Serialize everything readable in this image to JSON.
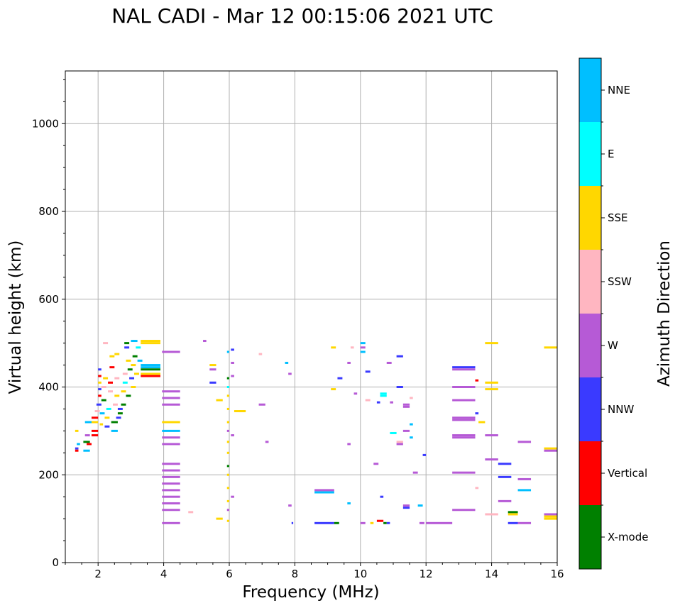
{
  "chart_data": {
    "type": "scatter",
    "title": "NAL CADI - Mar 12 00:15:06 2021 UTC",
    "xlabel": "Frequency (MHz)",
    "ylabel": "Virtual height (km)",
    "xlim": [
      1,
      16
    ],
    "ylim": [
      0,
      1120
    ],
    "grid": true,
    "x_ticks": [
      2,
      4,
      6,
      8,
      10,
      12,
      14,
      16
    ],
    "y_ticks": [
      0,
      200,
      400,
      600,
      800,
      1000
    ],
    "colorbar": {
      "label": "Azimuth Direction",
      "categories": [
        {
          "name": "X-mode",
          "color": "#008000"
        },
        {
          "name": "Vertical",
          "color": "#ff0000"
        },
        {
          "name": "NNW",
          "color": "#3a3aff"
        },
        {
          "name": "W",
          "color": "#b65ad6"
        },
        {
          "name": "SSW",
          "color": "#ffb6c1"
        },
        {
          "name": "SSE",
          "color": "#ffd700"
        },
        {
          "name": "E",
          "color": "#00ffff"
        },
        {
          "name": "NNE",
          "color": "#00bfff"
        }
      ]
    },
    "echoes": [
      [
        1.3,
        1.4,
        260,
        "NNW"
      ],
      [
        1.3,
        1.4,
        255,
        "Vertical"
      ],
      [
        1.35,
        1.45,
        270,
        "NNE"
      ],
      [
        1.3,
        1.4,
        300,
        "SSE"
      ],
      [
        1.55,
        1.75,
        255,
        "NNE"
      ],
      [
        1.55,
        1.75,
        275,
        "X-mode"
      ],
      [
        1.6,
        1.75,
        290,
        "W"
      ],
      [
        1.6,
        1.8,
        320,
        "NNE"
      ],
      [
        1.65,
        1.8,
        270,
        "Vertical"
      ],
      [
        1.8,
        2.0,
        290,
        "Vertical"
      ],
      [
        1.8,
        2.0,
        300,
        "Vertical"
      ],
      [
        1.8,
        2.0,
        320,
        "SSE"
      ],
      [
        1.8,
        2.0,
        330,
        "Vertical"
      ],
      [
        1.9,
        2.05,
        345,
        "SSW"
      ],
      [
        1.95,
        2.1,
        360,
        "NNW"
      ],
      [
        2.0,
        2.1,
        380,
        "Vertical"
      ],
      [
        2.0,
        2.1,
        395,
        "NNW"
      ],
      [
        2.0,
        2.1,
        410,
        "SSE"
      ],
      [
        2.0,
        2.1,
        425,
        "Vertical"
      ],
      [
        2.0,
        2.1,
        440,
        "NNW"
      ],
      [
        2.05,
        2.15,
        315,
        "SSE"
      ],
      [
        2.05,
        2.2,
        340,
        "NNE"
      ],
      [
        2.1,
        2.25,
        370,
        "X-mode"
      ],
      [
        2.1,
        2.25,
        400,
        "SSW"
      ],
      [
        2.15,
        2.3,
        420,
        "SSE"
      ],
      [
        2.15,
        2.3,
        500,
        "SSW"
      ],
      [
        2.2,
        2.35,
        310,
        "NNW"
      ],
      [
        2.2,
        2.35,
        330,
        "SSE"
      ],
      [
        2.25,
        2.4,
        350,
        "E"
      ],
      [
        2.3,
        2.45,
        390,
        "SSW"
      ],
      [
        2.3,
        2.45,
        410,
        "Vertical"
      ],
      [
        2.35,
        2.5,
        445,
        "Vertical"
      ],
      [
        2.35,
        2.5,
        470,
        "SSE"
      ],
      [
        2.4,
        2.6,
        320,
        "X-mode"
      ],
      [
        2.4,
        2.6,
        300,
        "NNE"
      ],
      [
        2.45,
        2.6,
        360,
        "SSW"
      ],
      [
        2.5,
        2.65,
        380,
        "SSE"
      ],
      [
        2.5,
        2.65,
        420,
        "SSW"
      ],
      [
        2.5,
        2.65,
        475,
        "SSE"
      ],
      [
        2.55,
        2.7,
        330,
        "NNW"
      ],
      [
        2.6,
        2.75,
        340,
        "X-mode"
      ],
      [
        2.6,
        2.75,
        350,
        "NNW"
      ],
      [
        2.7,
        2.85,
        360,
        "X-mode"
      ],
      [
        2.7,
        2.85,
        390,
        "SSE"
      ],
      [
        2.75,
        2.9,
        410,
        "E"
      ],
      [
        2.75,
        2.9,
        430,
        "SSW"
      ],
      [
        2.8,
        2.95,
        490,
        "NNW"
      ],
      [
        2.8,
        2.95,
        500,
        "X-mode"
      ],
      [
        2.85,
        3.0,
        460,
        "SSE"
      ],
      [
        2.85,
        3.0,
        380,
        "X-mode"
      ],
      [
        2.9,
        3.05,
        440,
        "X-mode"
      ],
      [
        2.95,
        3.1,
        420,
        "NNW"
      ],
      [
        3.0,
        3.15,
        400,
        "SSE"
      ],
      [
        3.0,
        3.15,
        450,
        "SSE"
      ],
      [
        3.0,
        3.2,
        505,
        "NNE"
      ],
      [
        3.05,
        3.2,
        470,
        "X-mode"
      ],
      [
        3.1,
        3.25,
        430,
        "SSE"
      ],
      [
        3.15,
        3.3,
        490,
        "E"
      ],
      [
        3.2,
        3.35,
        460,
        "NNE"
      ],
      [
        3.3,
        3.9,
        450,
        "NNE"
      ],
      [
        3.3,
        3.9,
        445,
        "NNE"
      ],
      [
        3.3,
        3.9,
        500,
        "SSE"
      ],
      [
        3.3,
        3.9,
        430,
        "SSE"
      ],
      [
        3.3,
        3.9,
        440,
        "X-mode"
      ],
      [
        3.3,
        3.9,
        425,
        "Vertical"
      ],
      [
        3.3,
        3.9,
        505,
        "SSE"
      ],
      [
        3.95,
        4.5,
        480,
        "W"
      ],
      [
        3.95,
        4.5,
        390,
        "W"
      ],
      [
        3.95,
        4.5,
        375,
        "W"
      ],
      [
        3.95,
        4.5,
        360,
        "W"
      ],
      [
        3.95,
        4.5,
        320,
        "SSE"
      ],
      [
        3.95,
        4.5,
        300,
        "NNE"
      ],
      [
        3.95,
        4.5,
        285,
        "W"
      ],
      [
        3.95,
        4.5,
        270,
        "W"
      ],
      [
        3.95,
        4.5,
        225,
        "W"
      ],
      [
        3.95,
        4.5,
        210,
        "W"
      ],
      [
        3.95,
        4.5,
        195,
        "W"
      ],
      [
        3.95,
        4.5,
        180,
        "W"
      ],
      [
        3.95,
        4.5,
        165,
        "W"
      ],
      [
        3.95,
        4.5,
        150,
        "W"
      ],
      [
        3.95,
        4.5,
        135,
        "W"
      ],
      [
        3.95,
        4.5,
        120,
        "W"
      ],
      [
        3.95,
        4.5,
        90,
        "W"
      ],
      [
        4.75,
        4.9,
        115,
        "SSW"
      ],
      [
        5.2,
        5.3,
        505,
        "W"
      ],
      [
        5.4,
        5.6,
        450,
        "SSE"
      ],
      [
        5.4,
        5.6,
        440,
        "W"
      ],
      [
        5.4,
        5.6,
        410,
        "NNW"
      ],
      [
        5.6,
        5.8,
        370,
        "SSE"
      ],
      [
        5.6,
        5.8,
        100,
        "SSE"
      ],
      [
        5.93,
        6.0,
        480,
        "NNE"
      ],
      [
        5.93,
        6.0,
        420,
        "X-mode"
      ],
      [
        5.93,
        6.0,
        400,
        "E"
      ],
      [
        5.93,
        6.0,
        380,
        "SSE"
      ],
      [
        5.93,
        6.0,
        350,
        "SSE"
      ],
      [
        5.93,
        6.0,
        320,
        "SSE"
      ],
      [
        5.93,
        6.0,
        300,
        "W"
      ],
      [
        5.93,
        6.0,
        275,
        "SSE"
      ],
      [
        5.93,
        6.0,
        250,
        "SSE"
      ],
      [
        5.93,
        6.0,
        220,
        "X-mode"
      ],
      [
        5.93,
        6.0,
        200,
        "SSE"
      ],
      [
        5.93,
        6.0,
        170,
        "SSE"
      ],
      [
        5.93,
        6.0,
        140,
        "SSE"
      ],
      [
        5.93,
        6.0,
        120,
        "W"
      ],
      [
        5.93,
        6.0,
        95,
        "SSE"
      ],
      [
        6.05,
        6.15,
        485,
        "NNW"
      ],
      [
        6.05,
        6.15,
        455,
        "W"
      ],
      [
        6.05,
        6.15,
        425,
        "W"
      ],
      [
        6.05,
        6.15,
        290,
        "W"
      ],
      [
        6.05,
        6.15,
        150,
        "W"
      ],
      [
        6.15,
        6.5,
        345,
        "SSE"
      ],
      [
        6.3,
        6.5,
        345,
        "SSE"
      ],
      [
        6.9,
        7.0,
        475,
        "SSW"
      ],
      [
        6.9,
        7.1,
        360,
        "W"
      ],
      [
        7.1,
        7.2,
        275,
        "W"
      ],
      [
        7.7,
        7.8,
        455,
        "NNE"
      ],
      [
        7.8,
        7.9,
        430,
        "W"
      ],
      [
        7.8,
        7.9,
        130,
        "W"
      ],
      [
        7.9,
        7.95,
        90,
        "NNW"
      ],
      [
        8.6,
        9.2,
        165,
        "W"
      ],
      [
        8.6,
        9.2,
        160,
        "NNE"
      ],
      [
        8.6,
        9.2,
        90,
        "NNW"
      ],
      [
        9.1,
        9.25,
        490,
        "SSE"
      ],
      [
        9.1,
        9.25,
        395,
        "SSE"
      ],
      [
        9.2,
        9.35,
        90,
        "X-mode"
      ],
      [
        9.3,
        9.45,
        420,
        "NNW"
      ],
      [
        9.6,
        9.7,
        135,
        "NNE"
      ],
      [
        9.6,
        9.7,
        270,
        "W"
      ],
      [
        9.6,
        9.7,
        455,
        "W"
      ],
      [
        9.7,
        9.8,
        490,
        "SSW"
      ],
      [
        9.8,
        9.9,
        385,
        "W"
      ],
      [
        10.0,
        10.15,
        500,
        "NNE"
      ],
      [
        10.0,
        10.15,
        480,
        "NNE"
      ],
      [
        10.0,
        10.15,
        490,
        "W"
      ],
      [
        10.0,
        10.15,
        90,
        "W"
      ],
      [
        10.15,
        10.3,
        435,
        "NNW"
      ],
      [
        10.15,
        10.3,
        370,
        "SSW"
      ],
      [
        10.3,
        10.4,
        90,
        "SSE"
      ],
      [
        10.4,
        10.55,
        225,
        "W"
      ],
      [
        10.5,
        10.6,
        365,
        "NNW"
      ],
      [
        10.5,
        10.7,
        95,
        "Vertical"
      ],
      [
        10.6,
        10.7,
        150,
        "NNW"
      ],
      [
        10.6,
        10.8,
        385,
        "E"
      ],
      [
        10.6,
        10.8,
        380,
        "E"
      ],
      [
        10.7,
        10.8,
        90,
        "X-mode"
      ],
      [
        10.8,
        10.9,
        90,
        "NNW"
      ],
      [
        10.8,
        10.95,
        455,
        "W"
      ],
      [
        10.9,
        11.0,
        365,
        "W"
      ],
      [
        10.9,
        11.1,
        295,
        "E"
      ],
      [
        11.1,
        11.3,
        400,
        "NNW"
      ],
      [
        11.1,
        11.3,
        470,
        "NNW"
      ],
      [
        11.1,
        11.3,
        275,
        "SSW"
      ],
      [
        11.1,
        11.3,
        270,
        "W"
      ],
      [
        11.3,
        11.5,
        360,
        "W"
      ],
      [
        11.3,
        11.5,
        355,
        "W"
      ],
      [
        11.3,
        11.5,
        300,
        "W"
      ],
      [
        11.3,
        11.5,
        130,
        "W"
      ],
      [
        11.3,
        11.5,
        125,
        "NNW"
      ],
      [
        11.5,
        11.6,
        375,
        "SSW"
      ],
      [
        11.5,
        11.6,
        315,
        "NNE"
      ],
      [
        11.5,
        11.6,
        285,
        "NNE"
      ],
      [
        11.6,
        11.75,
        205,
        "W"
      ],
      [
        11.75,
        11.9,
        130,
        "NNE"
      ],
      [
        11.8,
        11.95,
        90,
        "W"
      ],
      [
        11.9,
        12.0,
        245,
        "NNW"
      ],
      [
        12.0,
        12.8,
        90,
        "W"
      ],
      [
        12.8,
        13.5,
        445,
        "NNW"
      ],
      [
        12.8,
        13.5,
        440,
        "W"
      ],
      [
        12.8,
        13.5,
        400,
        "W"
      ],
      [
        12.8,
        13.5,
        370,
        "W"
      ],
      [
        12.8,
        13.5,
        330,
        "W"
      ],
      [
        12.8,
        13.5,
        325,
        "W"
      ],
      [
        12.8,
        13.5,
        290,
        "W"
      ],
      [
        12.8,
        13.5,
        285,
        "W"
      ],
      [
        12.8,
        13.5,
        205,
        "W"
      ],
      [
        12.8,
        13.5,
        120,
        "W"
      ],
      [
        13.5,
        13.6,
        415,
        "Vertical"
      ],
      [
        13.5,
        13.6,
        340,
        "NNW"
      ],
      [
        13.5,
        13.6,
        170,
        "SSW"
      ],
      [
        13.6,
        13.8,
        320,
        "SSE"
      ],
      [
        13.8,
        14.2,
        500,
        "SSE"
      ],
      [
        13.8,
        14.2,
        410,
        "SSE"
      ],
      [
        13.8,
        14.2,
        395,
        "SSE"
      ],
      [
        13.8,
        14.2,
        290,
        "W"
      ],
      [
        13.8,
        14.2,
        235,
        "W"
      ],
      [
        13.8,
        14.2,
        110,
        "SSW"
      ],
      [
        14.2,
        14.6,
        225,
        "NNW"
      ],
      [
        14.2,
        14.6,
        195,
        "NNW"
      ],
      [
        14.2,
        14.6,
        140,
        "W"
      ],
      [
        14.5,
        14.8,
        115,
        "X-mode"
      ],
      [
        14.5,
        14.8,
        110,
        "SSE"
      ],
      [
        14.5,
        14.8,
        90,
        "NNW"
      ],
      [
        14.8,
        15.2,
        275,
        "W"
      ],
      [
        14.8,
        15.2,
        190,
        "W"
      ],
      [
        14.8,
        15.2,
        165,
        "NNE"
      ],
      [
        14.8,
        15.2,
        90,
        "W"
      ],
      [
        15.6,
        16,
        490,
        "SSE"
      ],
      [
        15.6,
        16,
        260,
        "SSE"
      ],
      [
        15.6,
        16,
        255,
        "W"
      ],
      [
        15.6,
        16,
        105,
        "SSE"
      ],
      [
        15.6,
        16,
        110,
        "W"
      ],
      [
        15.6,
        16,
        100,
        "SSE"
      ]
    ]
  }
}
